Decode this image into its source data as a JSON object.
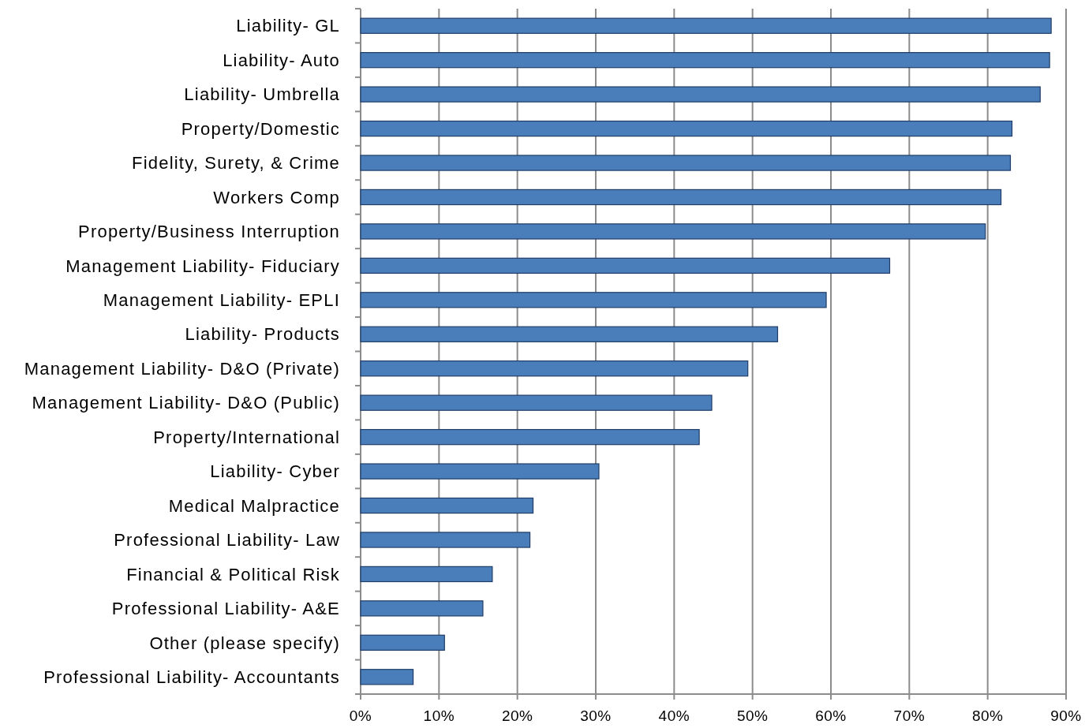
{
  "chart_data": {
    "type": "bar",
    "orientation": "horizontal",
    "categories": [
      "Liability- GL",
      "Liability- Auto",
      "Liability- Umbrella",
      "Property/Domestic",
      "Fidelity, Surety, & Crime",
      "Workers Comp",
      "Property/Business Interruption",
      "Management Liability- Fiduciary",
      "Management Liability- EPLI",
      "Liability- Products",
      "Management Liability- D&O (Private)",
      "Management Liability- D&O (Public)",
      "Property/International",
      "Liability- Cyber",
      "Medical Malpractice",
      "Professional Liability- Law",
      "Financial & Political Risk",
      "Professional Liability- A&E",
      "Other (please specify)",
      "Professional Liability- Accountants"
    ],
    "values": [
      88.1,
      87.9,
      86.7,
      83.1,
      82.9,
      81.7,
      79.7,
      67.5,
      59.4,
      53.2,
      49.4,
      44.8,
      43.2,
      30.4,
      22.0,
      21.6,
      16.8,
      15.6,
      10.7,
      6.7
    ],
    "color": "#4a7ebb",
    "xlim": [
      0,
      90
    ],
    "xticks": [
      {
        "value": 0,
        "label": "0%"
      },
      {
        "value": 10,
        "label": "10%"
      },
      {
        "value": 20,
        "label": "20%"
      },
      {
        "value": 30,
        "label": "30%"
      },
      {
        "value": 40,
        "label": "40%"
      },
      {
        "value": 50,
        "label": "50%"
      },
      {
        "value": 60,
        "label": "60%"
      },
      {
        "value": 70,
        "label": "70%"
      },
      {
        "value": 80,
        "label": "80%"
      },
      {
        "value": 90,
        "label": "90%"
      }
    ],
    "grid": "x"
  }
}
